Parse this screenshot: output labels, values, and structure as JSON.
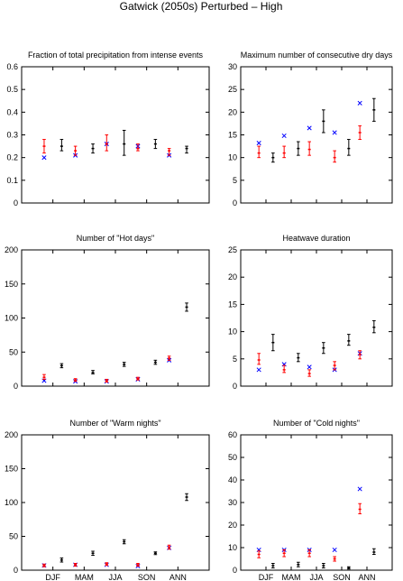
{
  "figure_title": "Gatwick (2050s) Perturbed – High",
  "colors": {
    "model": "#ff0000",
    "obs": "#0000ff",
    "scenario": "#000000"
  },
  "chart_data": [
    {
      "type": "errorbar",
      "title": "Fraction of total precipitation from intense events",
      "categories": [
        "DJF",
        "MAM",
        "JJA",
        "SON",
        "ANN"
      ],
      "show_xticklabels": false,
      "ylim": [
        0,
        0.6
      ],
      "yticks": [
        "0",
        "0.1",
        "0.2",
        "0.3",
        "0.4",
        "0.5",
        "0.6"
      ],
      "obs": [
        0.2,
        0.21,
        0.26,
        0.25,
        0.21
      ],
      "model": [
        {
          "mid": 0.25,
          "lo": 0.22,
          "hi": 0.28
        },
        {
          "mid": 0.23,
          "lo": 0.21,
          "hi": 0.25
        },
        {
          "mid": 0.26,
          "lo": 0.23,
          "hi": 0.3
        },
        {
          "mid": 0.24,
          "lo": 0.23,
          "hi": 0.26
        },
        {
          "mid": 0.23,
          "lo": 0.21,
          "hi": 0.24
        }
      ],
      "scenario": [
        {
          "mid": 0.25,
          "lo": 0.23,
          "hi": 0.28
        },
        {
          "mid": 0.24,
          "lo": 0.22,
          "hi": 0.26
        },
        {
          "mid": 0.26,
          "lo": 0.21,
          "hi": 0.32
        },
        {
          "mid": 0.26,
          "lo": 0.24,
          "hi": 0.28
        },
        {
          "mid": 0.24,
          "lo": 0.22,
          "hi": 0.25
        }
      ]
    },
    {
      "type": "errorbar",
      "title": "Maximum number of consecutive dry days",
      "categories": [
        "DJF",
        "MAM",
        "JJA",
        "SON",
        "ANN"
      ],
      "show_xticklabels": false,
      "ylim": [
        0,
        30
      ],
      "yticks": [
        "0",
        "5",
        "10",
        "15",
        "20",
        "25",
        "30"
      ],
      "obs": [
        13.2,
        14.8,
        16.5,
        15.5,
        22.0
      ],
      "model": [
        {
          "mid": 11.0,
          "lo": 10.0,
          "hi": 12.5
        },
        {
          "mid": 11.0,
          "lo": 10.0,
          "hi": 12.5
        },
        {
          "mid": 11.8,
          "lo": 10.5,
          "hi": 13.5
        },
        {
          "mid": 10.0,
          "lo": 9.0,
          "hi": 11.5
        },
        {
          "mid": 15.5,
          "lo": 14.0,
          "hi": 17.0
        }
      ],
      "scenario": [
        {
          "mid": 10.0,
          "lo": 9.0,
          "hi": 11.0
        },
        {
          "mid": 12.0,
          "lo": 10.5,
          "hi": 13.5
        },
        {
          "mid": 18.0,
          "lo": 15.5,
          "hi": 20.5
        },
        {
          "mid": 12.0,
          "lo": 10.5,
          "hi": 14.0
        },
        {
          "mid": 20.5,
          "lo": 18.0,
          "hi": 23.0
        }
      ]
    },
    {
      "type": "errorbar",
      "title": "Number of \"Hot days\"",
      "categories": [
        "DJF",
        "MAM",
        "JJA",
        "SON",
        "ANN"
      ],
      "show_xticklabels": false,
      "ylim": [
        0,
        200
      ],
      "yticks": [
        "0",
        "50",
        "100",
        "150",
        "200"
      ],
      "obs": [
        8,
        7,
        7,
        10,
        38
      ],
      "model": [
        {
          "mid": 13,
          "lo": 10,
          "hi": 17
        },
        {
          "mid": 9,
          "lo": 7,
          "hi": 11
        },
        {
          "mid": 8,
          "lo": 6,
          "hi": 10
        },
        {
          "mid": 11,
          "lo": 9,
          "hi": 13
        },
        {
          "mid": 41,
          "lo": 38,
          "hi": 44
        }
      ],
      "scenario": [
        {
          "mid": 30,
          "lo": 27,
          "hi": 33
        },
        {
          "mid": 20,
          "lo": 18,
          "hi": 23
        },
        {
          "mid": 32,
          "lo": 29,
          "hi": 35
        },
        {
          "mid": 35,
          "lo": 32,
          "hi": 38
        },
        {
          "mid": 116,
          "lo": 110,
          "hi": 122
        }
      ]
    },
    {
      "type": "errorbar",
      "title": "Heatwave duration",
      "categories": [
        "DJF",
        "MAM",
        "JJA",
        "SON",
        "ANN"
      ],
      "show_xticklabels": false,
      "ylim": [
        0,
        25
      ],
      "yticks": [
        "0",
        "5",
        "10",
        "15",
        "20",
        "25"
      ],
      "obs": [
        3.0,
        4.0,
        3.5,
        3.0,
        6.0
      ],
      "model": [
        {
          "mid": 4.8,
          "lo": 4.0,
          "hi": 6.0
        },
        {
          "mid": 3.0,
          "lo": 2.5,
          "hi": 3.8
        },
        {
          "mid": 2.3,
          "lo": 1.8,
          "hi": 3.0
        },
        {
          "mid": 3.8,
          "lo": 3.0,
          "hi": 4.5
        },
        {
          "mid": 5.8,
          "lo": 5.0,
          "hi": 6.5
        }
      ],
      "scenario": [
        {
          "mid": 8.0,
          "lo": 6.5,
          "hi": 9.5
        },
        {
          "mid": 5.2,
          "lo": 4.5,
          "hi": 6.0
        },
        {
          "mid": 7.0,
          "lo": 6.0,
          "hi": 8.0
        },
        {
          "mid": 8.3,
          "lo": 7.5,
          "hi": 9.5
        },
        {
          "mid": 10.8,
          "lo": 9.8,
          "hi": 12.0
        }
      ]
    },
    {
      "type": "errorbar",
      "title": "Number of \"Warm nights\"",
      "categories": [
        "DJF",
        "MAM",
        "JJA",
        "SON",
        "ANN"
      ],
      "show_xticklabels": true,
      "ylim": [
        0,
        200
      ],
      "yticks": [
        "0",
        "50",
        "100",
        "150",
        "200"
      ],
      "obs": [
        7,
        8,
        8,
        6,
        33
      ],
      "model": [
        {
          "mid": 7,
          "lo": 5,
          "hi": 9
        },
        {
          "mid": 8,
          "lo": 6,
          "hi": 10
        },
        {
          "mid": 9,
          "lo": 7,
          "hi": 11
        },
        {
          "mid": 8,
          "lo": 6,
          "hi": 10
        },
        {
          "mid": 34,
          "lo": 31,
          "hi": 37
        }
      ],
      "scenario": [
        {
          "mid": 15,
          "lo": 12,
          "hi": 18
        },
        {
          "mid": 25,
          "lo": 22,
          "hi": 28
        },
        {
          "mid": 42,
          "lo": 39,
          "hi": 45
        },
        {
          "mid": 25,
          "lo": 23,
          "hi": 27
        },
        {
          "mid": 108,
          "lo": 103,
          "hi": 113
        }
      ]
    },
    {
      "type": "errorbar",
      "title": "Number of \"Cold nights\"",
      "categories": [
        "DJF",
        "MAM",
        "JJA",
        "SON",
        "ANN"
      ],
      "show_xticklabels": true,
      "ylim": [
        0,
        60
      ],
      "yticks": [
        "0",
        "10",
        "20",
        "30",
        "40",
        "50",
        "60"
      ],
      "obs": [
        9,
        9,
        9,
        9,
        36
      ],
      "model": [
        {
          "mid": 7,
          "lo": 5.5,
          "hi": 8.5
        },
        {
          "mid": 7.5,
          "lo": 6,
          "hi": 9
        },
        {
          "mid": 7.5,
          "lo": 6,
          "hi": 9
        },
        {
          "mid": 5,
          "lo": 4,
          "hi": 6
        },
        {
          "mid": 27,
          "lo": 25,
          "hi": 29.5
        }
      ],
      "scenario": [
        {
          "mid": 2,
          "lo": 1,
          "hi": 3
        },
        {
          "mid": 2.5,
          "lo": 1.5,
          "hi": 3.5
        },
        {
          "mid": 2,
          "lo": 1,
          "hi": 3
        },
        {
          "mid": 1,
          "lo": 0.5,
          "hi": 1.5
        },
        {
          "mid": 8,
          "lo": 7,
          "hi": 9.5
        }
      ]
    }
  ]
}
